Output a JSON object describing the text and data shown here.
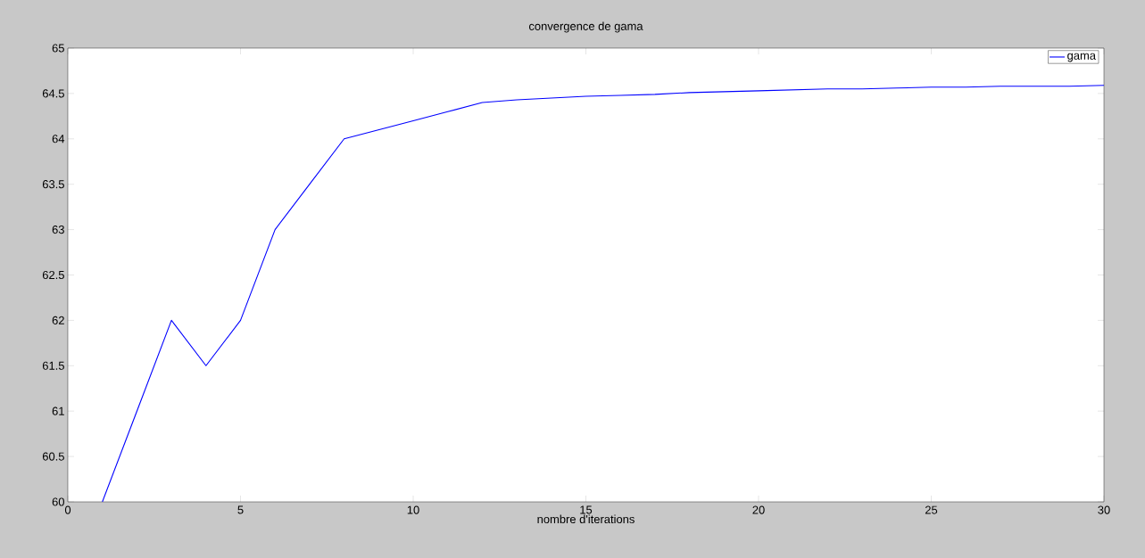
{
  "chart_data": {
    "type": "line",
    "title": "convergence de gama",
    "xlabel": "nombre d'iterations",
    "x": [
      1,
      2,
      3,
      4,
      5,
      6,
      7,
      8,
      9,
      10,
      11,
      12,
      13,
      14,
      15,
      16,
      17,
      18,
      19,
      20,
      21,
      22,
      23,
      24,
      25,
      26,
      27,
      28,
      29,
      30
    ],
    "series": [
      {
        "name": "gama",
        "color": "#0000ff",
        "values": [
          60,
          61,
          62,
          61.5,
          62,
          63,
          63.5,
          64,
          64.1,
          64.2,
          64.3,
          64.4,
          64.43,
          64.45,
          64.47,
          64.48,
          64.49,
          64.51,
          64.52,
          64.53,
          64.54,
          64.55,
          64.55,
          64.56,
          64.57,
          64.57,
          64.58,
          64.58,
          64.58,
          64.59
        ]
      }
    ],
    "xlim": [
      0,
      30
    ],
    "ylim": [
      60,
      65
    ],
    "xticks": [
      0,
      5,
      10,
      15,
      20,
      25,
      30
    ],
    "yticks": [
      60,
      60.5,
      61,
      61.5,
      62,
      62.5,
      63,
      63.5,
      64,
      64.5,
      65
    ],
    "legend": "top right"
  }
}
